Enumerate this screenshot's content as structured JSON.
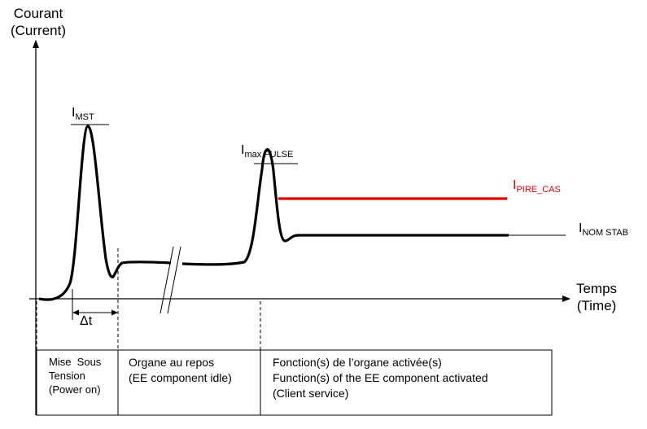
{
  "y_axis": {
    "title_line1": "Courant",
    "title_line2": "(Current)"
  },
  "x_axis": {
    "title_line1": "Temps",
    "title_line2": "(Time)"
  },
  "levels": {
    "mst": {
      "main": "I",
      "sub": "MST"
    },
    "max_pulse": {
      "main": "I",
      "sub": "max PULSE"
    },
    "pire_cas": {
      "main": "I",
      "sub": "PIRE_CAS",
      "color": "#e00000"
    },
    "nom_stab": {
      "main": "I",
      "sub": "NOM STAB"
    }
  },
  "delta_label": "Δt",
  "phases": {
    "power_on": {
      "line1": "Mise  Sous",
      "line2": "Tension",
      "line3": "(Power on)"
    },
    "idle": {
      "line1": "Organe au repos",
      "line2": "(EE component idle)"
    },
    "activated": {
      "line1": "Fonction(s) de l’organe activée(s)",
      "line2": "Function(s) of the EE component activated",
      "line3": "(Client service)"
    }
  },
  "colors": {
    "curve": "#000000",
    "worst_case_line": "#e00000"
  }
}
